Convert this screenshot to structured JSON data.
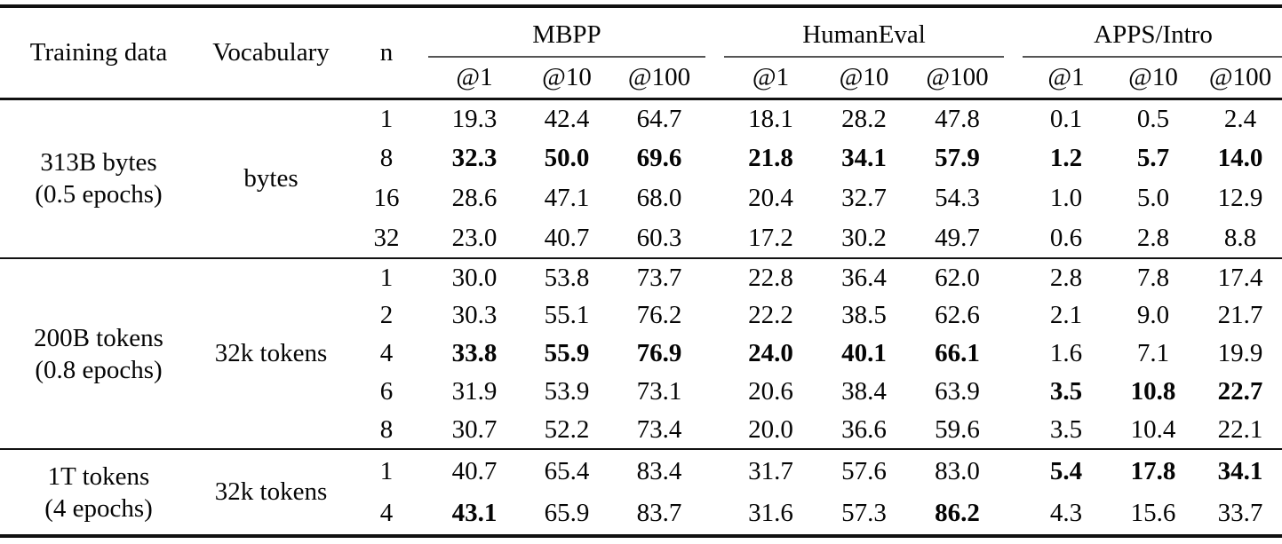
{
  "table": {
    "columns": {
      "training_data": "Training data",
      "vocabulary": "Vocabulary",
      "n": "n"
    },
    "groups": [
      {
        "label": "MBPP",
        "sub": [
          "@1",
          "@10",
          "@100"
        ]
      },
      {
        "label": "HumanEval",
        "sub": [
          "@1",
          "@10",
          "@100"
        ]
      },
      {
        "label": "APPS/Intro",
        "sub": [
          "@1",
          "@10",
          "@100"
        ]
      }
    ],
    "blocks": [
      {
        "training_data": [
          "313B bytes",
          "(0.5 epochs)"
        ],
        "vocabulary": "bytes",
        "rows": [
          {
            "n": "1",
            "values": [
              "19.3",
              "42.4",
              "64.7",
              "18.1",
              "28.2",
              "47.8",
              "0.1",
              "0.5",
              "2.4"
            ],
            "bold": []
          },
          {
            "n": "8",
            "values": [
              "32.3",
              "50.0",
              "69.6",
              "21.8",
              "34.1",
              "57.9",
              "1.2",
              "5.7",
              "14.0"
            ],
            "bold": [
              0,
              1,
              2,
              3,
              4,
              5,
              6,
              7,
              8
            ]
          },
          {
            "n": "16",
            "values": [
              "28.6",
              "47.1",
              "68.0",
              "20.4",
              "32.7",
              "54.3",
              "1.0",
              "5.0",
              "12.9"
            ],
            "bold": []
          },
          {
            "n": "32",
            "values": [
              "23.0",
              "40.7",
              "60.3",
              "17.2",
              "30.2",
              "49.7",
              "0.6",
              "2.8",
              "8.8"
            ],
            "bold": []
          }
        ]
      },
      {
        "training_data": [
          "200B tokens",
          "(0.8 epochs)"
        ],
        "vocabulary": "32k tokens",
        "rows": [
          {
            "n": "1",
            "values": [
              "30.0",
              "53.8",
              "73.7",
              "22.8",
              "36.4",
              "62.0",
              "2.8",
              "7.8",
              "17.4"
            ],
            "bold": []
          },
          {
            "n": "2",
            "values": [
              "30.3",
              "55.1",
              "76.2",
              "22.2",
              "38.5",
              "62.6",
              "2.1",
              "9.0",
              "21.7"
            ],
            "bold": []
          },
          {
            "n": "4",
            "values": [
              "33.8",
              "55.9",
              "76.9",
              "24.0",
              "40.1",
              "66.1",
              "1.6",
              "7.1",
              "19.9"
            ],
            "bold": [
              0,
              1,
              2,
              3,
              4,
              5
            ]
          },
          {
            "n": "6",
            "values": [
              "31.9",
              "53.9",
              "73.1",
              "20.6",
              "38.4",
              "63.9",
              "3.5",
              "10.8",
              "22.7"
            ],
            "bold": [
              6,
              7,
              8
            ]
          },
          {
            "n": "8",
            "values": [
              "30.7",
              "52.2",
              "73.4",
              "20.0",
              "36.6",
              "59.6",
              "3.5",
              "10.4",
              "22.1"
            ],
            "bold": []
          }
        ]
      },
      {
        "training_data": [
          "1T tokens",
          "(4 epochs)"
        ],
        "vocabulary": "32k tokens",
        "rows": [
          {
            "n": "1",
            "values": [
              "40.7",
              "65.4",
              "83.4",
              "31.7",
              "57.6",
              "83.0",
              "5.4",
              "17.8",
              "34.1"
            ],
            "bold": [
              6,
              7,
              8
            ]
          },
          {
            "n": "4",
            "values": [
              "43.1",
              "65.9",
              "83.7",
              "31.6",
              "57.3",
              "86.2",
              "4.3",
              "15.6",
              "33.7"
            ],
            "bold": [
              0,
              5
            ]
          }
        ]
      }
    ]
  }
}
